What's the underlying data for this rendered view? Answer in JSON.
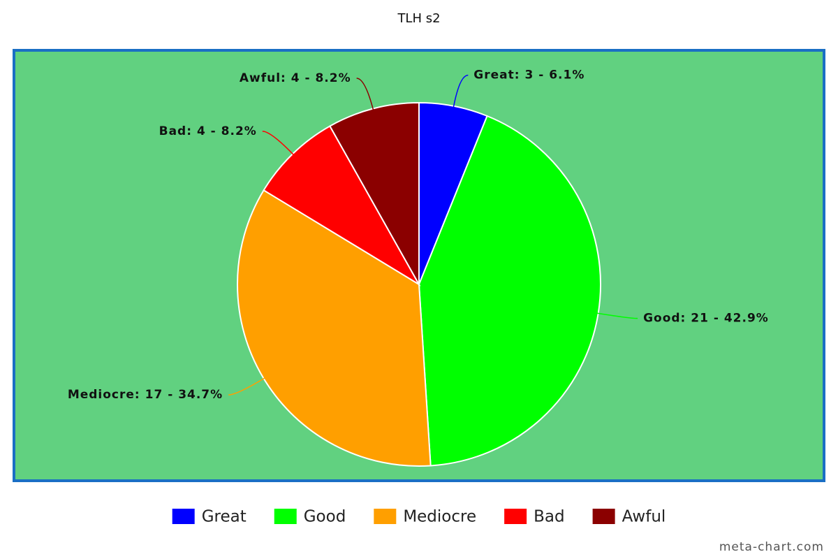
{
  "chart_data": {
    "type": "pie",
    "title": "TLH s2",
    "categories": [
      "Great",
      "Good",
      "Mediocre",
      "Bad",
      "Awful"
    ],
    "values": [
      3,
      21,
      17,
      4,
      4
    ],
    "value_labels": [
      "Great: 3 - 6.1%",
      "Good: 21 - 42.9%",
      "Mediocre: 17 - 34.7%",
      "Bad: 4 - 8.2%",
      "Awful: 4 - 8.2%"
    ],
    "colors": [
      "#0000ff",
      "#00ff00",
      "#ff9f00",
      "#ff0000",
      "#8b0000"
    ],
    "legend": "bottom",
    "credit": "meta-chart.com"
  }
}
